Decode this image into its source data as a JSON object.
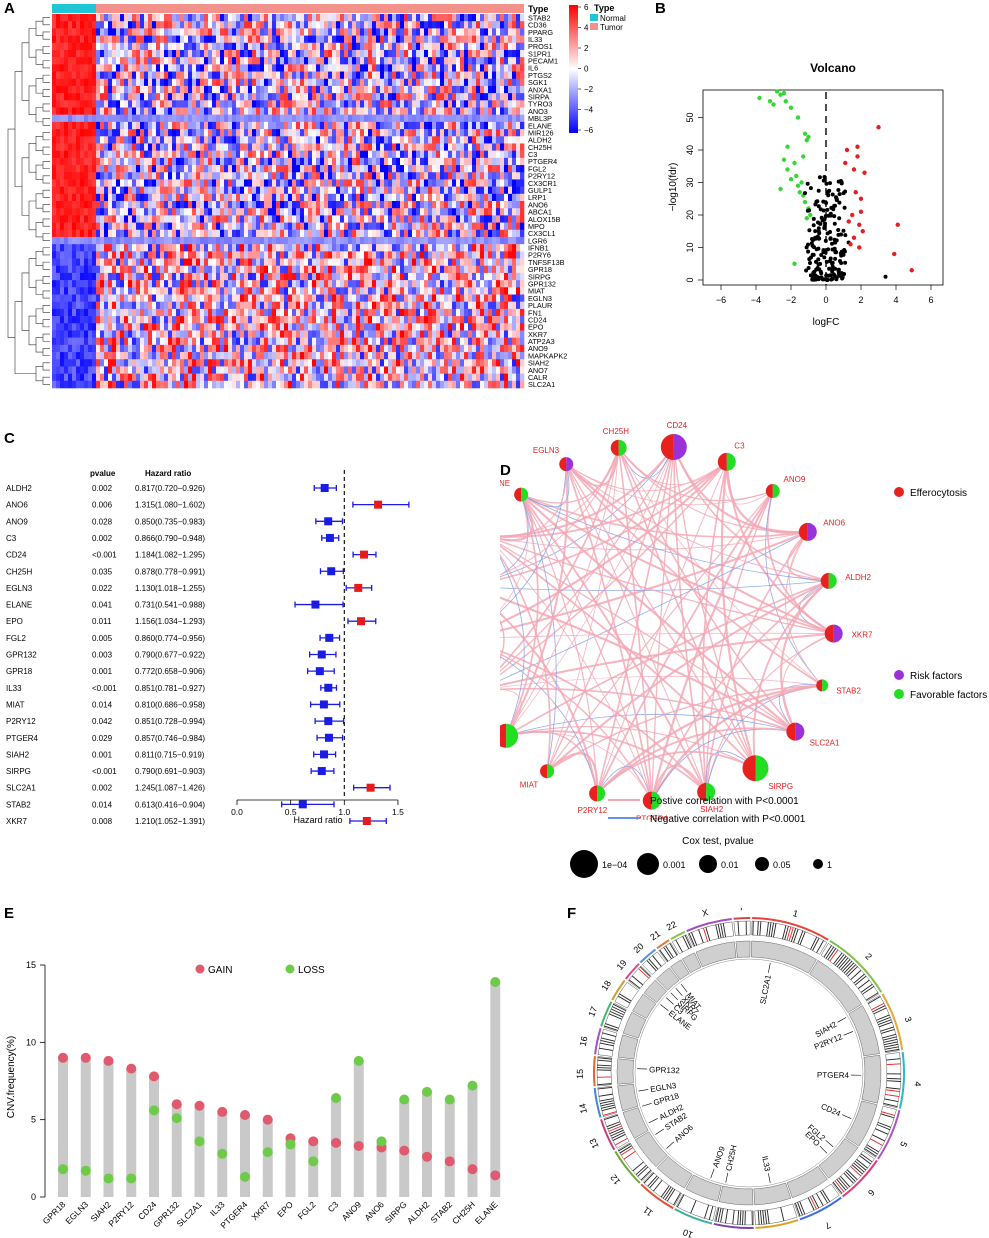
{
  "panels": {
    "A": "A",
    "B": "B",
    "C": "C",
    "D": "D",
    "E": "E",
    "F": "F"
  },
  "heatmap": {
    "type_label": "Type",
    "legend_title": "Type",
    "legend_items": [
      {
        "name": "Normal",
        "color": "#1fc6d6"
      },
      {
        "name": "Tumor",
        "color": "#f2928a"
      }
    ],
    "scale_ticks": [
      "6",
      "4",
      "2",
      "0",
      "−2",
      "−4",
      "−6"
    ],
    "genes": [
      "STAB2",
      "CD36",
      "PPARG",
      "IL33",
      "PROS1",
      "S1PR1",
      "PECAM1",
      "IL6",
      "PTGS2",
      "SGK1",
      "ANXA1",
      "SIRPA",
      "TYRO3",
      "ANO3",
      "MBL3P",
      "ELANE",
      "MIR126",
      "ALDH2",
      "CH25H",
      "C3",
      "PTGER4",
      "FGL2",
      "P2RY12",
      "CX3CR1",
      "GULP1",
      "LRP1",
      "ANO6",
      "ABCA1",
      "ALOX15B",
      "MPO",
      "CX3CL1",
      "LGR6",
      "IFNB1",
      "P2RY6",
      "TNFSF13B",
      "GPR18",
      "SIRPG",
      "GPR132",
      "MIAT",
      "EGLN3",
      "PLAUR",
      "FN1",
      "CD24",
      "EPO",
      "XKR7",
      "ATP2A3",
      "ANO9",
      "MAPKAPK2",
      "SIAH2",
      "ANO7",
      "CALR",
      "SLC2A1"
    ],
    "colors": {
      "high": "#ff0000",
      "mid": "#ffffff",
      "low": "#0000ff"
    }
  },
  "volcano": {
    "title": "Volcano",
    "xlabel": "logFC",
    "ylabel": "−log10(fdr)",
    "xticks": [
      "−6",
      "−4",
      "−2",
      "0",
      "2",
      "4",
      "6"
    ],
    "yticks": [
      "0",
      "10",
      "20",
      "30",
      "40",
      "50"
    ]
  },
  "forest": {
    "col_pvalue": "pvalue",
    "col_hr": "Hazard ratio",
    "xlabel": "Hazard ratio",
    "xticks": [
      "0.0",
      "0.5",
      "1.0",
      "1.5"
    ],
    "rows": [
      {
        "gene": "ALDH2",
        "p": "0.002",
        "hr": "0.817(0.720−0.926)",
        "v": 0.817,
        "lo": 0.72,
        "hi": 0.926
      },
      {
        "gene": "ANO6",
        "p": "0.006",
        "hr": "1.315(1.080−1.602)",
        "v": 1.315,
        "lo": 1.08,
        "hi": 1.602
      },
      {
        "gene": "ANO9",
        "p": "0.028",
        "hr": "0.850(0.735−0.983)",
        "v": 0.85,
        "lo": 0.735,
        "hi": 0.983
      },
      {
        "gene": "C3",
        "p": "0.002",
        "hr": "0.866(0.790−0.948)",
        "v": 0.866,
        "lo": 0.79,
        "hi": 0.948
      },
      {
        "gene": "CD24",
        "p": "<0.001",
        "hr": "1.184(1.082−1.295)",
        "v": 1.184,
        "lo": 1.082,
        "hi": 1.295
      },
      {
        "gene": "CH25H",
        "p": "0.035",
        "hr": "0.878(0.778−0.991)",
        "v": 0.878,
        "lo": 0.778,
        "hi": 0.991
      },
      {
        "gene": "EGLN3",
        "p": "0.022",
        "hr": "1.130(1.018−1.255)",
        "v": 1.13,
        "lo": 1.018,
        "hi": 1.255
      },
      {
        "gene": "ELANE",
        "p": "0.041",
        "hr": "0.731(0.541−0.988)",
        "v": 0.731,
        "lo": 0.541,
        "hi": 0.988
      },
      {
        "gene": "EPO",
        "p": "0.011",
        "hr": "1.156(1.034−1.293)",
        "v": 1.156,
        "lo": 1.034,
        "hi": 1.293
      },
      {
        "gene": "FGL2",
        "p": "0.005",
        "hr": "0.860(0.774−0.956)",
        "v": 0.86,
        "lo": 0.774,
        "hi": 0.956
      },
      {
        "gene": "GPR132",
        "p": "0.003",
        "hr": "0.790(0.677−0.922)",
        "v": 0.79,
        "lo": 0.677,
        "hi": 0.922
      },
      {
        "gene": "GPR18",
        "p": "0.001",
        "hr": "0.772(0.658−0.906)",
        "v": 0.772,
        "lo": 0.658,
        "hi": 0.906
      },
      {
        "gene": "IL33",
        "p": "<0.001",
        "hr": "0.851(0.781−0.927)",
        "v": 0.851,
        "lo": 0.781,
        "hi": 0.927
      },
      {
        "gene": "MIAT",
        "p": "0.014",
        "hr": "0.810(0.686−0.958)",
        "v": 0.81,
        "lo": 0.686,
        "hi": 0.958
      },
      {
        "gene": "P2RY12",
        "p": "0.042",
        "hr": "0.851(0.728−0.994)",
        "v": 0.851,
        "lo": 0.728,
        "hi": 0.994
      },
      {
        "gene": "PTGER4",
        "p": "0.029",
        "hr": "0.857(0.746−0.984)",
        "v": 0.857,
        "lo": 0.746,
        "hi": 0.984
      },
      {
        "gene": "SIAH2",
        "p": "0.001",
        "hr": "0.811(0.715−0.919)",
        "v": 0.811,
        "lo": 0.715,
        "hi": 0.919
      },
      {
        "gene": "SIRPG",
        "p": "<0.001",
        "hr": "0.790(0.691−0.903)",
        "v": 0.79,
        "lo": 0.691,
        "hi": 0.903
      },
      {
        "gene": "SLC2A1",
        "p": "0.002",
        "hr": "1.245(1.087−1.426)",
        "v": 1.245,
        "lo": 1.087,
        "hi": 1.426
      },
      {
        "gene": "STAB2",
        "p": "0.014",
        "hr": "0.613(0.416−0.904)",
        "v": 0.613,
        "lo": 0.416,
        "hi": 0.904
      },
      {
        "gene": "XKR7",
        "p": "0.008",
        "hr": "1.210(1.052−1.391)",
        "v": 1.21,
        "lo": 1.052,
        "hi": 1.391
      }
    ]
  },
  "network": {
    "nodes": [
      {
        "name": "CD24",
        "type": "risk"
      },
      {
        "name": "C3",
        "type": "favorable"
      },
      {
        "name": "ANO9",
        "type": "favorable"
      },
      {
        "name": "ANO6",
        "type": "risk"
      },
      {
        "name": "ALDH2",
        "type": "favorable"
      },
      {
        "name": "XKR7",
        "type": "risk"
      },
      {
        "name": "STAB2",
        "type": "favorable"
      },
      {
        "name": "SLC2A1",
        "type": "risk"
      },
      {
        "name": "SIRPG",
        "type": "favorable"
      },
      {
        "name": "SIAH2",
        "type": "favorable"
      },
      {
        "name": "PTGER4",
        "type": "favorable"
      },
      {
        "name": "P2RY12",
        "type": "favorable"
      },
      {
        "name": "MIAT",
        "type": "favorable"
      },
      {
        "name": "IL33",
        "type": "favorable"
      },
      {
        "name": "GPR18",
        "type": "favorable"
      },
      {
        "name": "GPR132",
        "type": "favorable"
      },
      {
        "name": "FGL2",
        "type": "favorable"
      },
      {
        "name": "EPO",
        "type": "risk"
      },
      {
        "name": "ELANE",
        "type": "favorable"
      },
      {
        "name": "EGLN3",
        "type": "risk"
      },
      {
        "name": "CH25H",
        "type": "favorable"
      }
    ],
    "legend": {
      "efferocytosis": "Efferocytosis",
      "risk": "Risk factors",
      "favorable": "Favorable factors"
    },
    "lines": {
      "pos": "Postive correlation with P<0.0001",
      "neg": "Negative correlation with P<0.0001"
    },
    "size_title": "Cox test, pvalue",
    "size_labels": [
      "1e−04",
      "0.001",
      "0.01",
      "0.05",
      "1"
    ],
    "colors": {
      "efferocytosis": "#e8201e",
      "risk": "#9a32d8",
      "favorable": "#22dd22",
      "pos": "#f4a9b8",
      "neg": "#6c8fe0"
    }
  },
  "chart_data": [
    {
      "type": "bar",
      "title": "",
      "xlabel": "",
      "ylabel": "CNV.frequency(%)",
      "ylim": [
        0,
        15
      ],
      "yticks": [
        "0",
        "5",
        "10",
        "15"
      ],
      "legend": [
        "GAIN",
        "LOSS"
      ],
      "categories": [
        "GPR18",
        "EGLN3",
        "SIAH2",
        "P2RY12",
        "CD24",
        "GPR132",
        "SLC2A1",
        "IL33",
        "PTGER4",
        "XKR7",
        "EPO",
        "FGL2",
        "C3",
        "ANO9",
        "ANO6",
        "SIRPG",
        "ALDH2",
        "STAB2",
        "CH25H",
        "ELANE"
      ],
      "series": [
        {
          "name": "GAIN",
          "color": "#e05a6e",
          "values": [
            9.0,
            9.0,
            8.8,
            8.3,
            7.8,
            6.0,
            5.9,
            5.5,
            5.3,
            5.0,
            3.8,
            3.6,
            3.5,
            3.3,
            3.2,
            3.0,
            2.6,
            2.3,
            1.8,
            1.4
          ]
        },
        {
          "name": "LOSS",
          "color": "#6ecb4a",
          "values": [
            1.8,
            1.7,
            1.2,
            1.2,
            5.6,
            5.1,
            3.6,
            2.8,
            1.3,
            2.9,
            3.4,
            2.3,
            6.4,
            8.8,
            3.6,
            6.3,
            6.8,
            6.3,
            7.2,
            13.9
          ]
        }
      ]
    }
  ],
  "circos": {
    "chromosomes": [
      "1",
      "2",
      "3",
      "4",
      "5",
      "6",
      "7",
      "8",
      "9",
      "10",
      "11",
      "12",
      "13",
      "14",
      "15",
      "16",
      "17",
      "18",
      "19",
      "20",
      "21",
      "22",
      "X",
      "Y"
    ],
    "genes": [
      "SLC2A1",
      "SIAH2",
      "P2RY12",
      "PTGER4",
      "CD24",
      "FGL2",
      "EPO",
      "IL33",
      "CH25H",
      "ANO9",
      "ANO6",
      "STAB2",
      "ALDH2",
      "GPR18",
      "EGLN3",
      "GPR132",
      "ELANE",
      "C3",
      "SIRPG",
      "XKR7",
      "MIAT"
    ]
  }
}
